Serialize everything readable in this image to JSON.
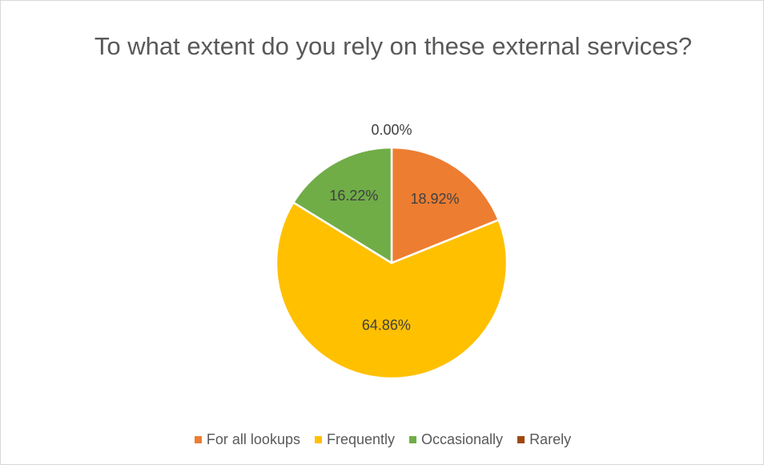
{
  "chart_data": {
    "type": "pie",
    "title": "To what extent do you rely on these external services?",
    "slices": [
      {
        "label": "For all lookups",
        "value": 18.92,
        "display": "18.92%",
        "color": "#ED7D31"
      },
      {
        "label": "Frequently",
        "value": 64.86,
        "display": "64.86%",
        "color": "#FFC000"
      },
      {
        "label": "Occasionally",
        "value": 16.22,
        "display": "16.22%",
        "color": "#70AD47"
      },
      {
        "label": "Rarely",
        "value": 0.0,
        "display": "0.00%",
        "color": "#9E480E"
      }
    ],
    "legend_position": "bottom",
    "label_color": "#404040",
    "slice_border_color": "#ffffff"
  }
}
